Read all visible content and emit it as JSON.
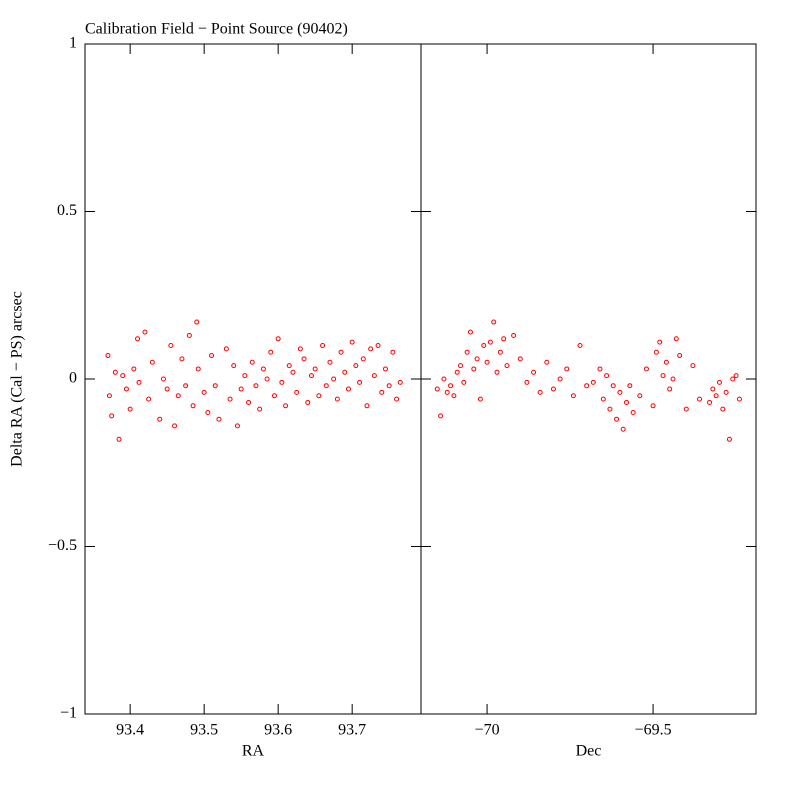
{
  "chart_data": [
    {
      "type": "scatter",
      "title": "Calibration Field − Point Source (90402)",
      "ylabel": "Delta RA (Cal − PS) arcsec",
      "xlabel": "RA",
      "xlim": [
        93.339,
        93.793
      ],
      "xticks": [
        93.4,
        93.5,
        93.6,
        93.7
      ],
      "ylim": [
        -1,
        1
      ],
      "yticks": [
        {
          "value": -1,
          "label": "−1"
        },
        {
          "value": -0.5,
          "label": "−0.5"
        },
        0,
        0.5,
        1
      ],
      "color": "#ff0000",
      "x": [
        93.37,
        93.372,
        93.375,
        93.38,
        93.385,
        93.39,
        93.395,
        93.4,
        93.405,
        93.41,
        93.412,
        93.42,
        93.425,
        93.43,
        93.44,
        93.445,
        93.45,
        93.455,
        93.46,
        93.465,
        93.47,
        93.475,
        93.48,
        93.485,
        93.49,
        93.492,
        93.5,
        93.505,
        93.51,
        93.515,
        93.52,
        93.53,
        93.535,
        93.54,
        93.545,
        93.55,
        93.555,
        93.56,
        93.565,
        93.57,
        93.575,
        93.58,
        93.585,
        93.59,
        93.595,
        93.6,
        93.605,
        93.61,
        93.615,
        93.62,
        93.625,
        93.63,
        93.635,
        93.64,
        93.645,
        93.65,
        93.655,
        93.66,
        93.665,
        93.67,
        93.675,
        93.68,
        93.685,
        93.69,
        93.695,
        93.7,
        93.705,
        93.71,
        93.715,
        93.72,
        93.725,
        93.73,
        93.735,
        93.74,
        93.745,
        93.75,
        93.755,
        93.76,
        93.765
      ],
      "y": [
        0.07,
        -0.05,
        -0.11,
        0.02,
        -0.18,
        0.01,
        -0.03,
        -0.09,
        0.03,
        0.12,
        -0.01,
        0.14,
        -0.06,
        0.05,
        -0.12,
        0.0,
        -0.03,
        0.1,
        -0.14,
        -0.05,
        0.06,
        -0.02,
        0.13,
        -0.08,
        0.17,
        0.03,
        -0.04,
        -0.1,
        0.07,
        -0.02,
        -0.12,
        0.09,
        -0.06,
        0.04,
        -0.14,
        -0.03,
        0.01,
        -0.07,
        0.05,
        -0.02,
        -0.09,
        0.03,
        0.0,
        0.08,
        -0.05,
        0.12,
        -0.01,
        -0.08,
        0.04,
        0.02,
        -0.04,
        0.09,
        0.06,
        -0.07,
        0.01,
        0.03,
        -0.05,
        0.1,
        -0.02,
        0.05,
        0.0,
        -0.06,
        0.08,
        0.02,
        -0.03,
        0.11,
        0.04,
        -0.01,
        0.06,
        -0.08,
        0.09,
        0.01,
        0.1,
        -0.04,
        0.03,
        -0.02,
        0.08,
        -0.06,
        -0.01
      ]
    },
    {
      "type": "scatter",
      "xlabel": "Dec",
      "xlim": [
        -70.199,
        -69.19
      ],
      "xticks": [
        {
          "value": -70,
          "label": "−70"
        },
        {
          "value": -69.5,
          "label": "−69.5"
        }
      ],
      "ylim": [
        -1,
        1
      ],
      "yticks": [
        -1,
        -0.5,
        0,
        0.5,
        1
      ],
      "color": "#ff0000",
      "x": [
        -70.15,
        -70.14,
        -70.13,
        -70.12,
        -70.11,
        -70.1,
        -70.09,
        -70.08,
        -70.07,
        -70.06,
        -70.05,
        -70.04,
        -70.03,
        -70.02,
        -70.01,
        -70.0,
        -69.99,
        -69.98,
        -69.97,
        -69.96,
        -69.95,
        -69.94,
        -69.92,
        -69.9,
        -69.88,
        -69.86,
        -69.84,
        -69.82,
        -69.8,
        -69.78,
        -69.76,
        -69.74,
        -69.72,
        -69.7,
        -69.68,
        -69.66,
        -69.65,
        -69.64,
        -69.63,
        -69.62,
        -69.61,
        -69.6,
        -69.59,
        -69.58,
        -69.57,
        -69.56,
        -69.54,
        -69.52,
        -69.5,
        -69.49,
        -69.48,
        -69.47,
        -69.46,
        -69.45,
        -69.44,
        -69.43,
        -69.42,
        -69.4,
        -69.38,
        -69.36,
        -69.33,
        -69.32,
        -69.31,
        -69.3,
        -69.29,
        -69.28,
        -69.27,
        -69.26,
        -69.25,
        -69.24
      ],
      "y": [
        -0.03,
        -0.11,
        0.0,
        -0.04,
        -0.02,
        -0.05,
        0.02,
        0.04,
        -0.01,
        0.08,
        0.14,
        0.03,
        0.06,
        -0.06,
        0.1,
        0.05,
        0.11,
        0.17,
        0.02,
        0.08,
        0.12,
        0.04,
        0.13,
        0.06,
        -0.01,
        0.02,
        -0.04,
        0.05,
        -0.03,
        0.0,
        0.03,
        -0.05,
        0.1,
        -0.02,
        -0.01,
        0.03,
        -0.06,
        0.01,
        -0.09,
        -0.02,
        -0.12,
        -0.04,
        -0.15,
        -0.07,
        -0.02,
        -0.1,
        -0.05,
        0.03,
        -0.08,
        0.08,
        0.11,
        0.01,
        0.05,
        -0.03,
        0.0,
        0.12,
        0.07,
        -0.09,
        0.04,
        -0.06,
        -0.07,
        -0.03,
        -0.05,
        -0.01,
        -0.09,
        -0.04,
        -0.18,
        0.0,
        0.01,
        -0.06
      ]
    }
  ]
}
